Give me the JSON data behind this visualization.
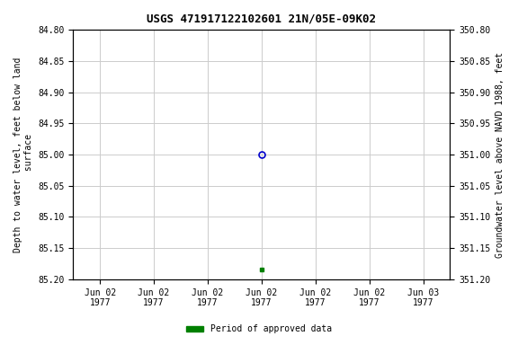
{
  "title": "USGS 471917122102601 21N/05E-09K02",
  "ylabel_left": "Depth to water level, feet below land\n surface",
  "ylabel_right": "Groundwater level above NAVD 1988, feet",
  "ylim_left": [
    84.8,
    85.2
  ],
  "ylim_right": [
    351.2,
    350.8
  ],
  "yticks_left": [
    84.8,
    84.85,
    84.9,
    84.95,
    85.0,
    85.05,
    85.1,
    85.15,
    85.2
  ],
  "yticks_right": [
    351.2,
    351.15,
    351.1,
    351.05,
    351.0,
    350.95,
    350.9,
    350.85,
    350.8
  ],
  "point_open_x": 3,
  "point_open_y": 85.0,
  "point_filled_x": 3,
  "point_filled_y": 85.185,
  "open_color": "#0000cc",
  "filled_color": "#008000",
  "legend_label": "Period of approved data",
  "legend_color": "#008000",
  "background_color": "#ffffff",
  "grid_color": "#cccccc",
  "xtick_positions": [
    0,
    1,
    2,
    3,
    4,
    5,
    6
  ],
  "xtick_labels": [
    "Jun 02\n1977",
    "Jun 02\n1977",
    "Jun 02\n1977",
    "Jun 02\n1977",
    "Jun 02\n1977",
    "Jun 02\n1977",
    "Jun 03\n1977"
  ],
  "xlim": [
    -0.5,
    6.5
  ]
}
